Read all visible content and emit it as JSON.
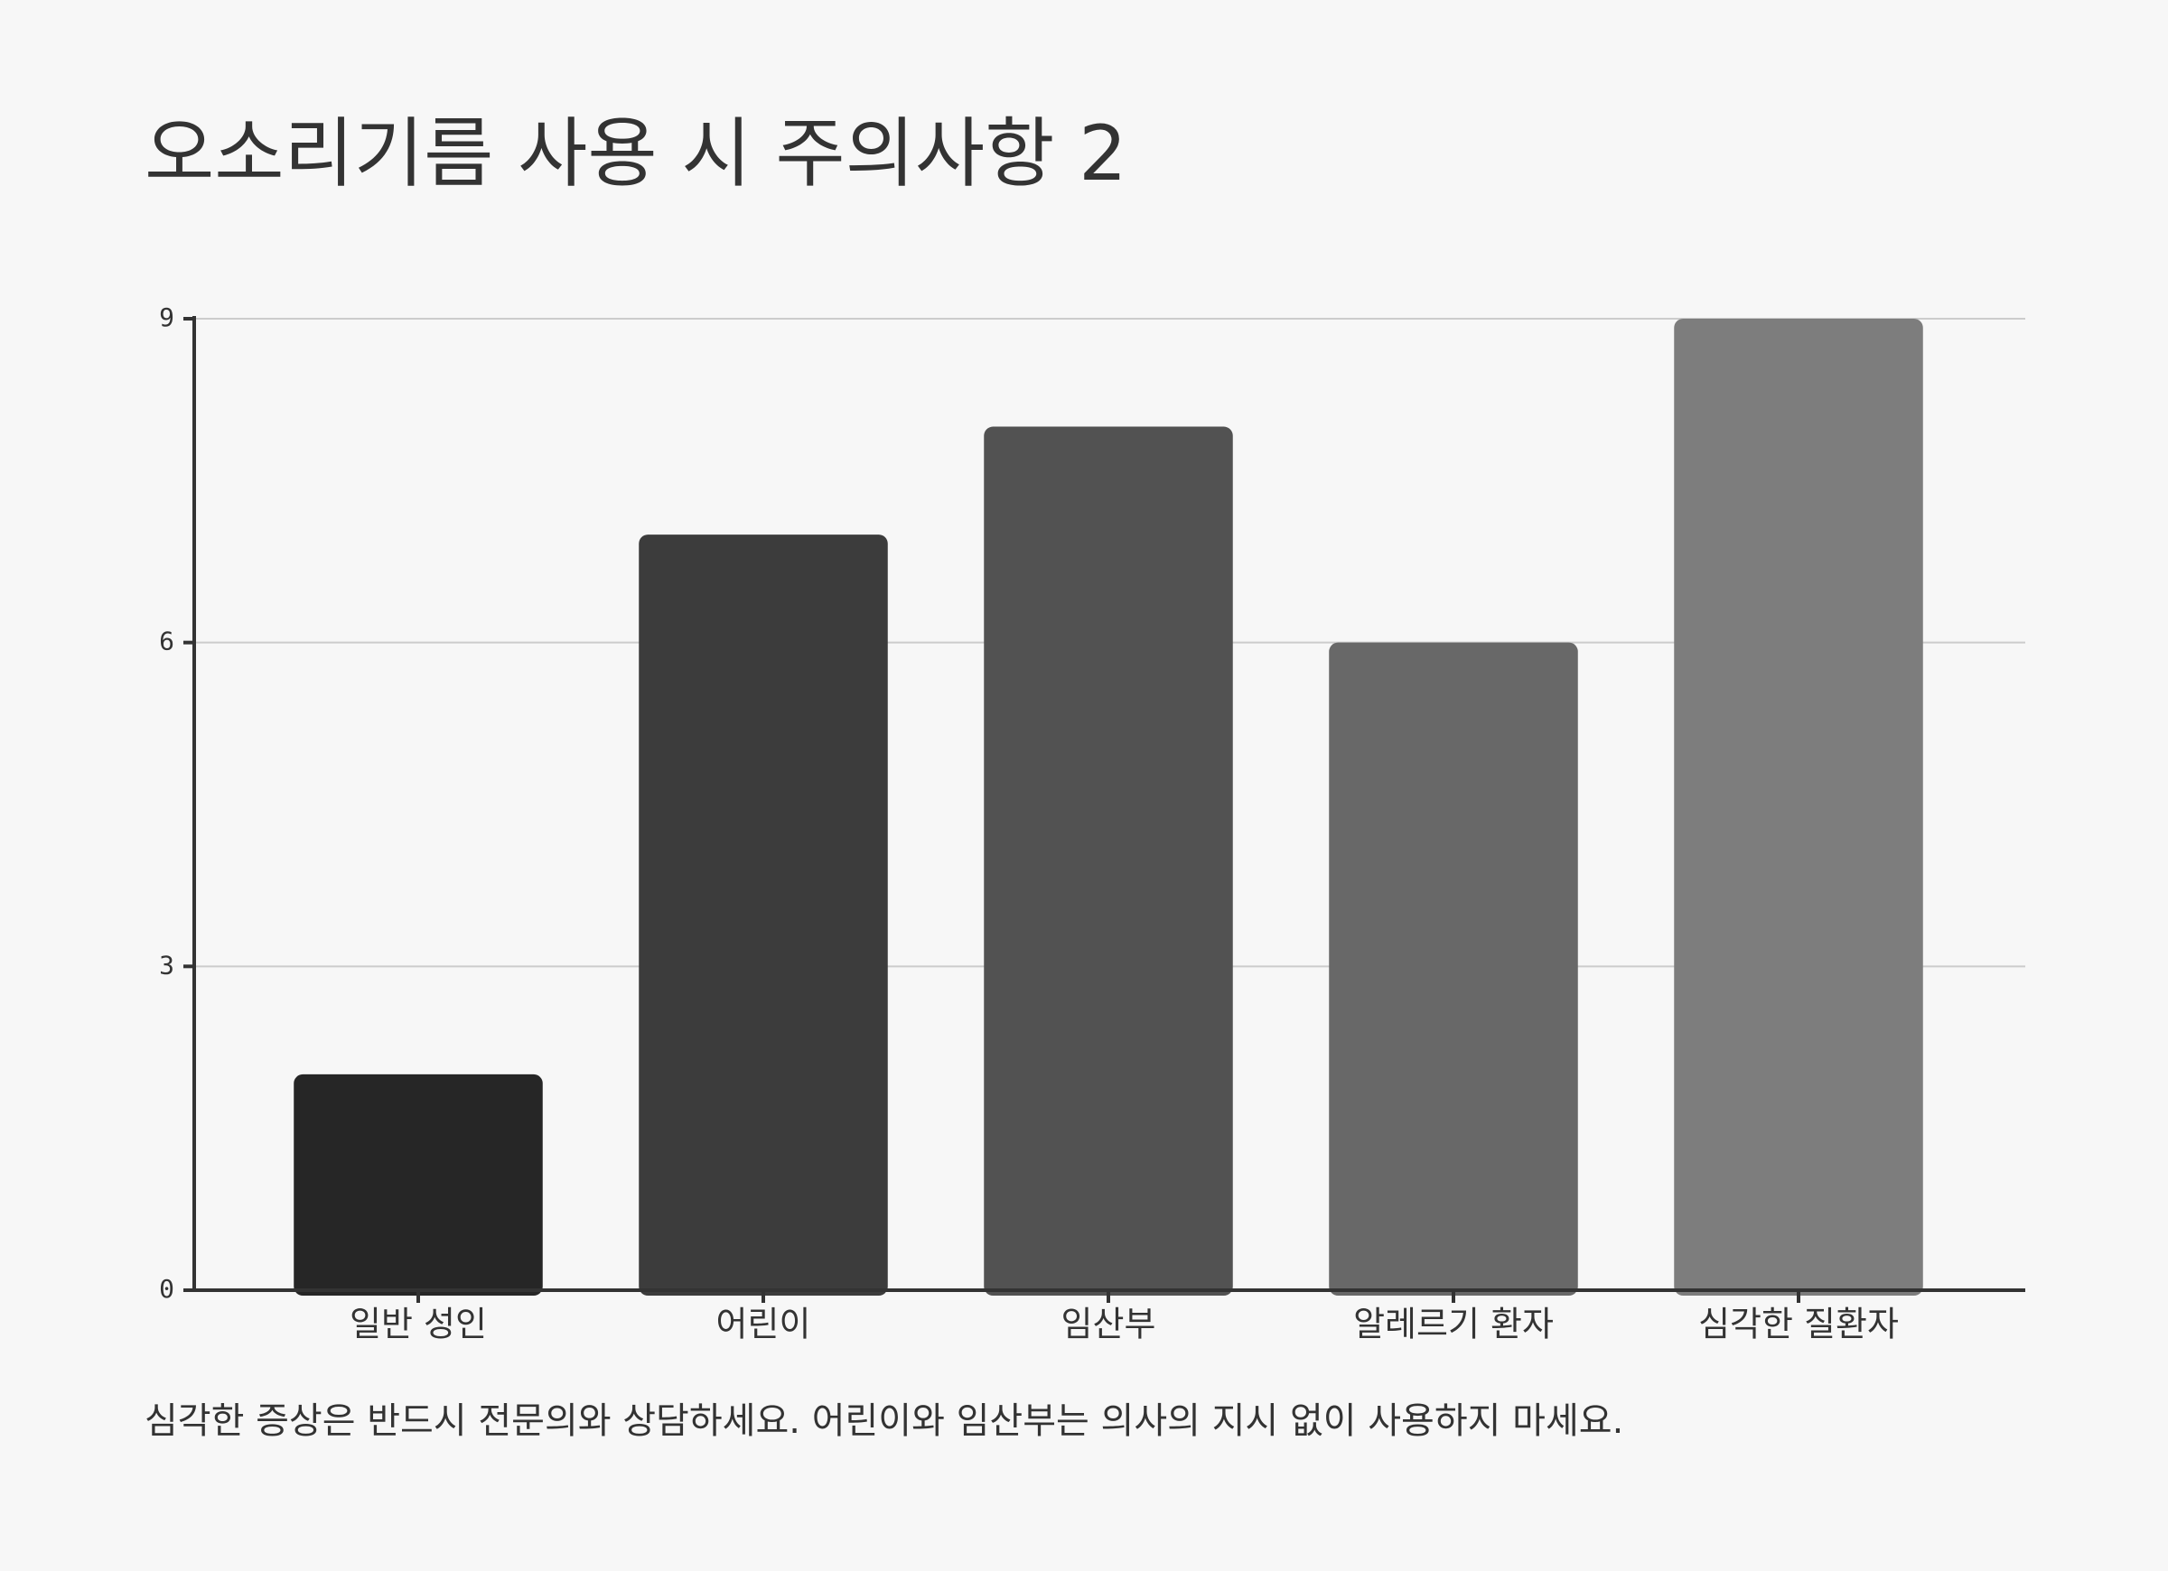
{
  "title": "오소리기름 사용 시 주의사항 2",
  "footnote": "심각한 증상은 반드시 전문의와 상담하세요. 어린이와 임산부는 의사의 지시 없이 사용하지 마세요.",
  "chart_data": {
    "type": "bar",
    "title": "오소리기름 사용 시 주의사항 2",
    "xlabel": "",
    "ylabel": "",
    "categories": [
      "일반 성인",
      "어린이",
      "임산부",
      "알레르기 환자",
      "심각한 질환자"
    ],
    "values": [
      2,
      7,
      8,
      6,
      9
    ],
    "colors": [
      "#262626",
      "#3c3c3c",
      "#525252",
      "#686868",
      "#7d7d7d"
    ],
    "ylim": [
      0,
      9
    ],
    "yticks": [
      0,
      3,
      6,
      9
    ],
    "grid": true,
    "legend": "none"
  }
}
